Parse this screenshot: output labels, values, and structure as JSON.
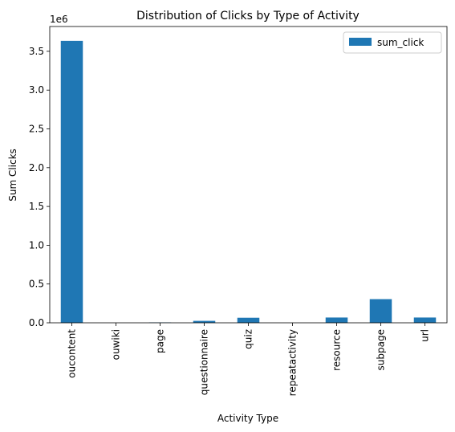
{
  "chart_data": {
    "type": "bar",
    "title": "Distribution of Clicks by Type of Activity",
    "xlabel": "Activity Type",
    "ylabel": "Sum Clicks",
    "y_offset_label": "1e6",
    "ylim": [
      0,
      3.82
    ],
    "yticks": [
      0.0,
      0.5,
      1.0,
      1.5,
      2.0,
      2.5,
      3.0,
      3.5
    ],
    "ytick_labels": [
      "0.0",
      "0.5",
      "1.0",
      "1.5",
      "2.0",
      "2.5",
      "3.0",
      "3.5"
    ],
    "categories": [
      "oucontent",
      "ouwiki",
      "page",
      "questionnaire",
      "quiz",
      "repeatactivity",
      "resource",
      "subpage",
      "url"
    ],
    "series": [
      {
        "name": "sum_click",
        "values": [
          3.635,
          0.0,
          0.005,
          0.025,
          0.065,
          0.0,
          0.068,
          0.305,
          0.068
        ]
      }
    ],
    "legend_position": "top-right",
    "grid": false,
    "bar_color": "#1f77b4"
  }
}
